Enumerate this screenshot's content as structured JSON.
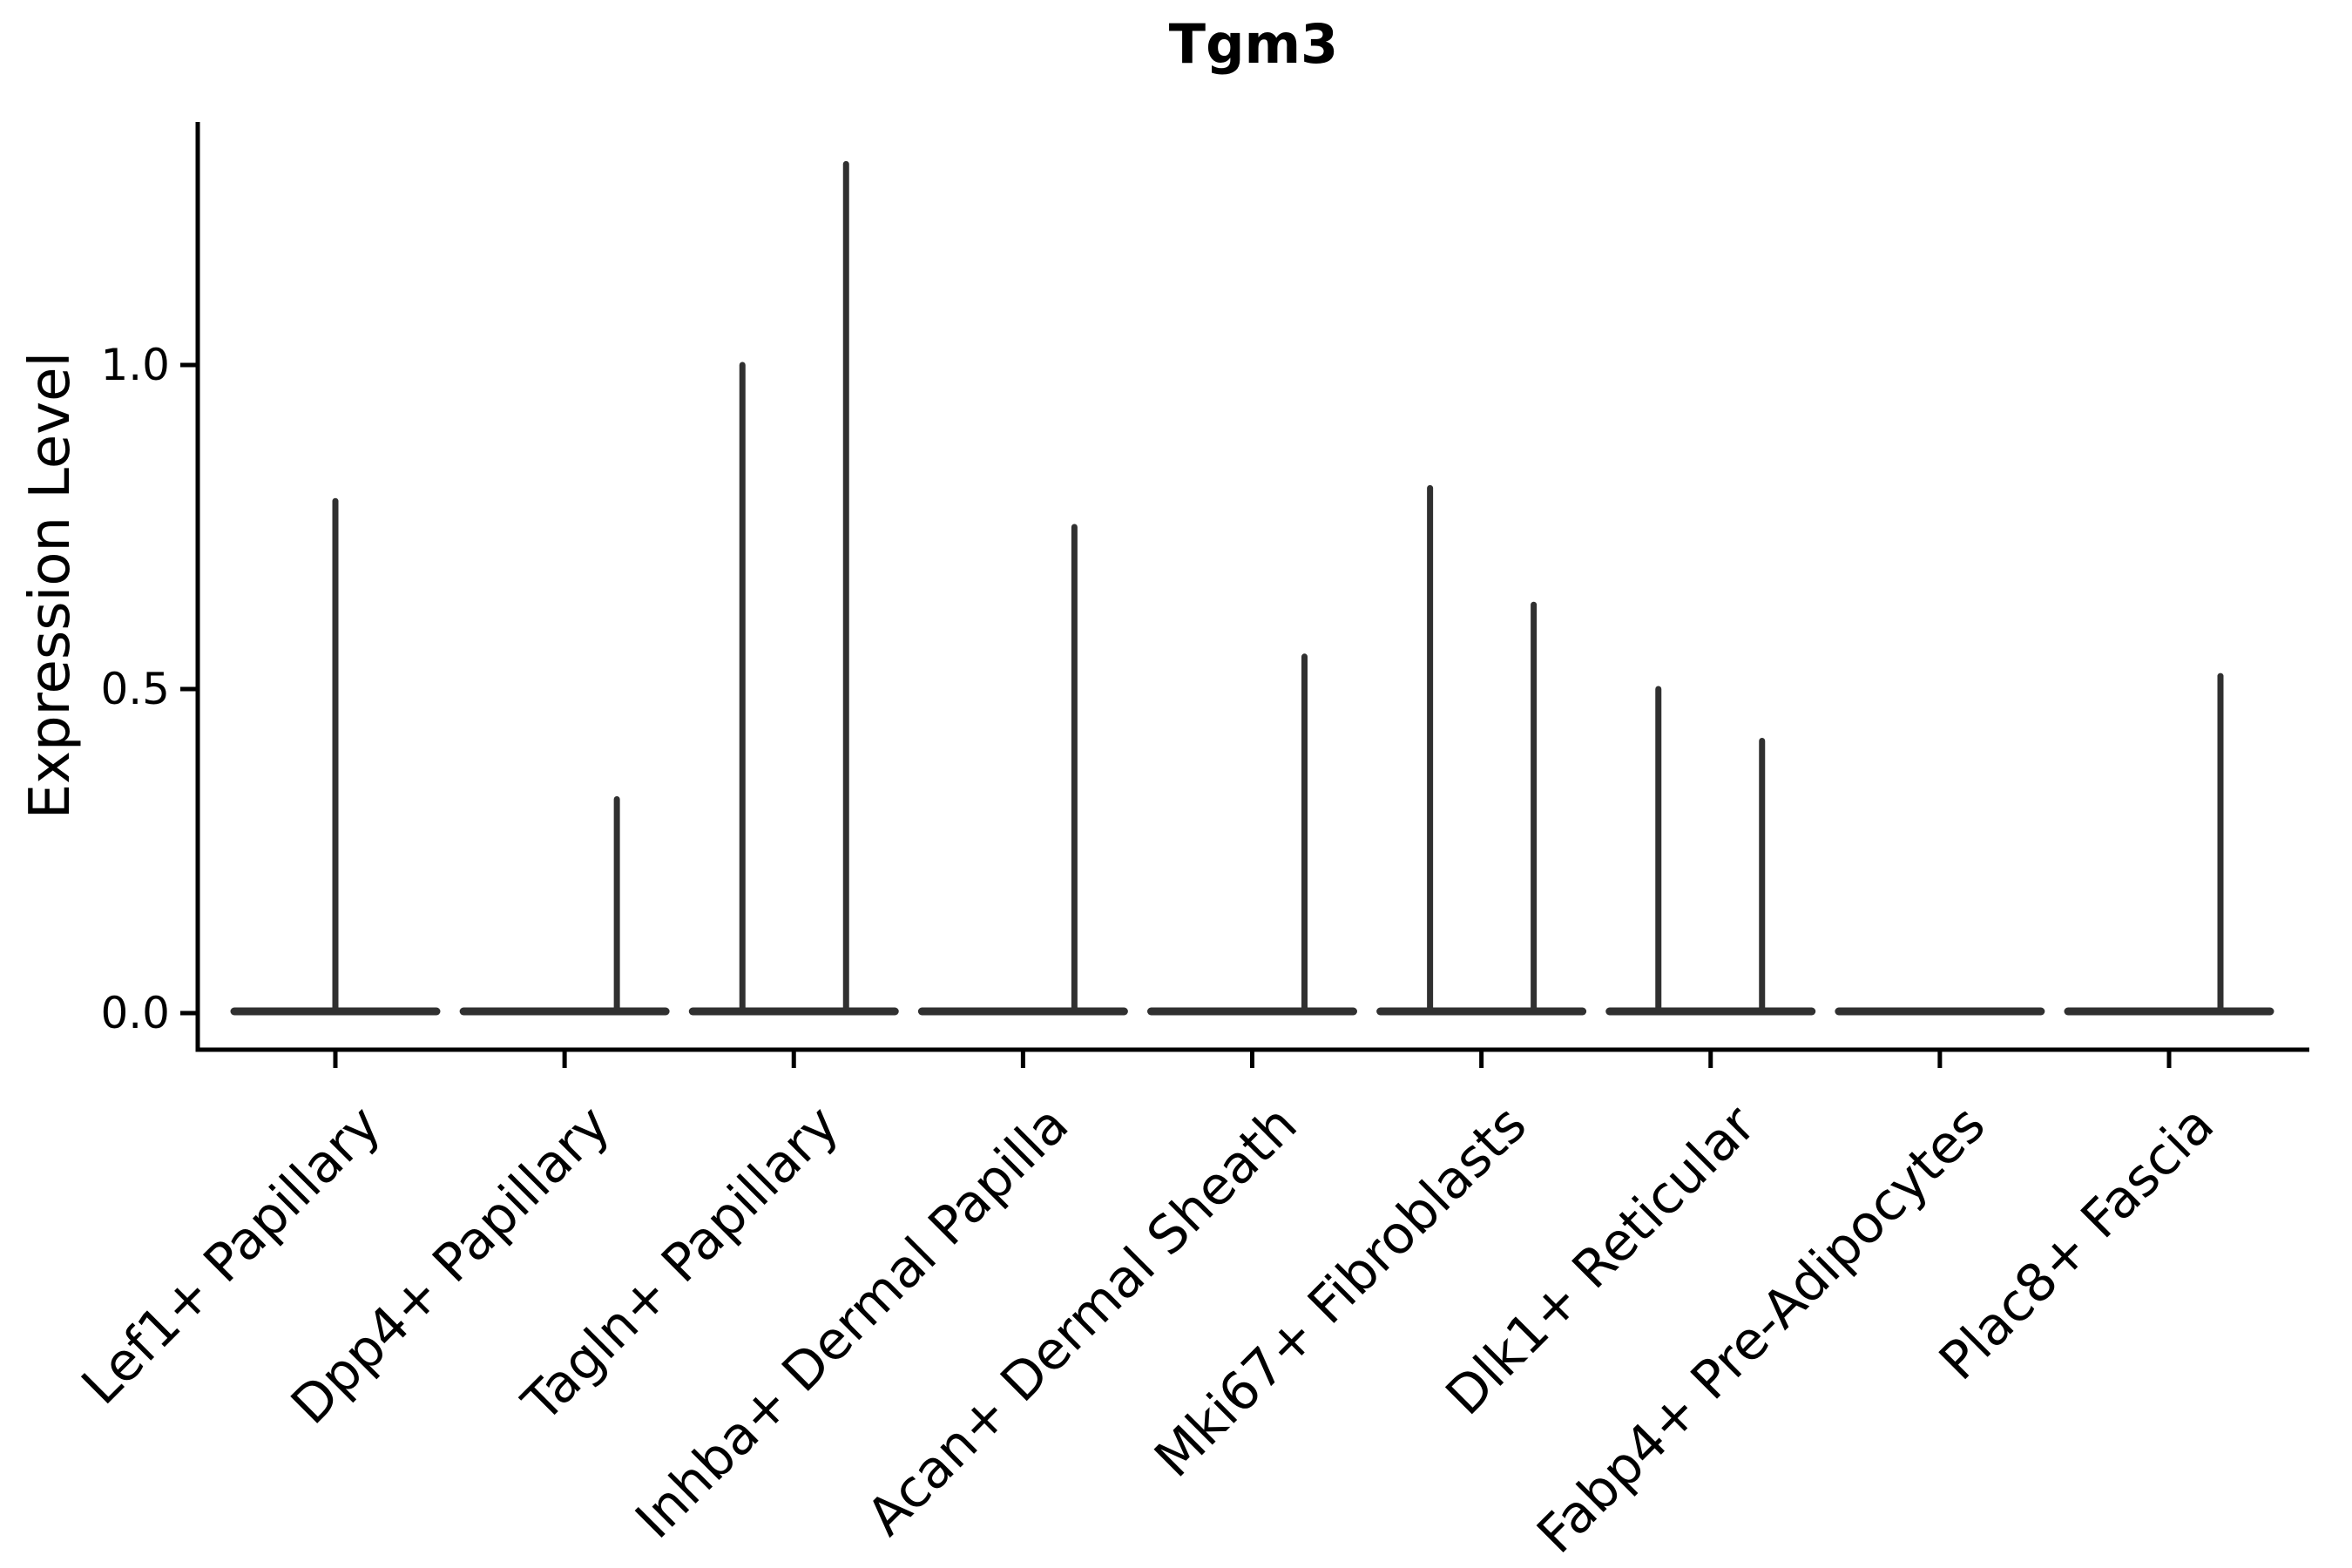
{
  "title": "Tgm3",
  "y_axis": {
    "label": "Expression Level",
    "tick_labels": [
      "0.0",
      "0.5",
      "1.0"
    ],
    "tick_values": [
      0.0,
      0.5,
      1.0
    ]
  },
  "colors": {
    "background": "#ffffff",
    "axis": "#000000",
    "text": "#000000",
    "violin": "#303030"
  },
  "chart_data": {
    "type": "violin",
    "title": "Tgm3",
    "xlabel": "",
    "ylabel": "Expression Level",
    "yticks": [
      0.0,
      0.5,
      1.0
    ],
    "ylim": [
      -0.06,
      1.38
    ],
    "grid": false,
    "legend": "none",
    "categories": [
      "Lef1+ Papillary",
      "Dpp4+ Papillary",
      "Tagln+ Papillary",
      "Inhba+ Dermal Papilla",
      "Acan+ Dermal Sheath",
      "Mki67+ Fibroblasts",
      "Dlk1+ Reticular",
      "Fabp4+ Pre-Adipocytes",
      "Plac8+ Fascia"
    ],
    "description": "Each category shows a collapsed violin: a flat horizontal base at expression 0 with one or two thin density spikes rising to the maximum expression value. Spike offset is in pixels from the category center (positive = right).",
    "violins": [
      {
        "category": "Lef1+ Papillary",
        "base_value": 0.0,
        "spikes": [
          {
            "offset": 0,
            "max": 0.79
          }
        ]
      },
      {
        "category": "Dpp4+ Papillary",
        "base_value": 0.0,
        "spikes": [
          {
            "offset": 60,
            "max": 0.33
          }
        ]
      },
      {
        "category": "Tagln+ Papillary",
        "base_value": 0.0,
        "spikes": [
          {
            "offset": -59,
            "max": 1.0
          },
          {
            "offset": 60,
            "max": 1.31
          }
        ]
      },
      {
        "category": "Inhba+ Dermal Papilla",
        "base_value": 0.0,
        "spikes": [
          {
            "offset": 59,
            "max": 0.75
          }
        ]
      },
      {
        "category": "Acan+ Dermal Sheath",
        "base_value": 0.0,
        "spikes": [
          {
            "offset": 60,
            "max": 0.55
          }
        ]
      },
      {
        "category": "Mki67+ Fibroblasts",
        "base_value": 0.0,
        "spikes": [
          {
            "offset": -59,
            "max": 0.81
          },
          {
            "offset": 60,
            "max": 0.63
          }
        ]
      },
      {
        "category": "Dlk1+ Reticular",
        "base_value": 0.0,
        "spikes": [
          {
            "offset": -60,
            "max": 0.5
          },
          {
            "offset": 59,
            "max": 0.42
          }
        ]
      },
      {
        "category": "Fabp4+ Pre-Adipocytes",
        "base_value": 0.0,
        "spikes": []
      },
      {
        "category": "Plac8+ Fascia",
        "base_value": 0.0,
        "spikes": [
          {
            "offset": 59,
            "max": 0.52
          }
        ]
      }
    ]
  }
}
